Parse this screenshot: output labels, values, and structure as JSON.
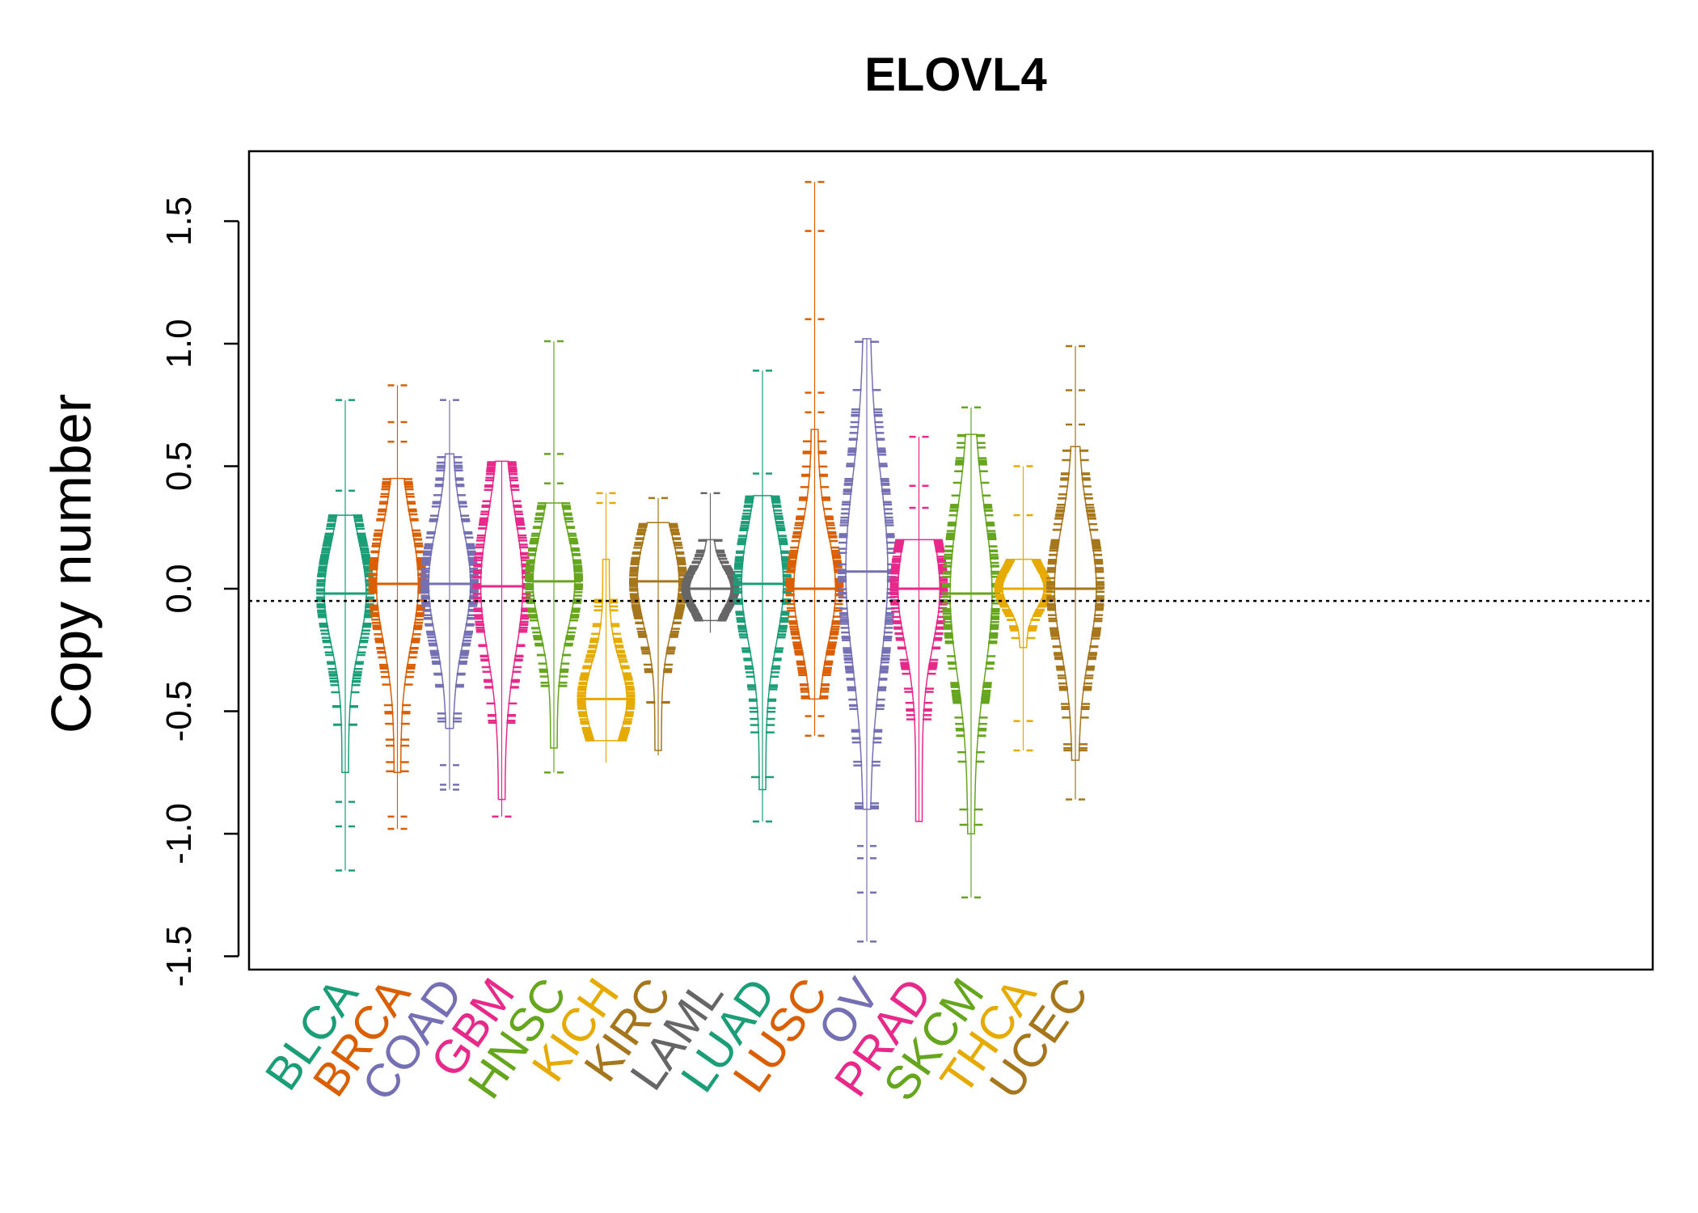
{
  "chart_data": {
    "type": "beanplot",
    "title": "ELOVL4",
    "xlabel": "",
    "ylabel": "Copy number",
    "ylim": [
      -1.5,
      1.7
    ],
    "yticks": [
      "-1.5",
      "-1.0",
      "-0.5",
      "0.0",
      "0.5",
      "1.0",
      "1.5"
    ],
    "reference_line": -0.05,
    "grid": false,
    "categories": [
      "BLCA",
      "BRCA",
      "COAD",
      "GBM",
      "HNSC",
      "KICH",
      "KIRC",
      "LAML",
      "LUAD",
      "LUSC",
      "OV",
      "PRAD",
      "SKCM",
      "THCA",
      "UCEC"
    ],
    "series": [
      {
        "category": "BLCA",
        "color": "#1B9E77",
        "median": -0.02,
        "min": -1.15,
        "max": 0.77,
        "q_low": -0.75,
        "q_high": 0.3,
        "outliers": [
          0.77,
          0.4,
          -0.87,
          -0.97,
          -1.15
        ]
      },
      {
        "category": "BRCA",
        "color": "#D95F02",
        "median": 0.02,
        "min": -0.98,
        "max": 0.83,
        "q_low": -0.75,
        "q_high": 0.45,
        "outliers": [
          0.83,
          0.68,
          0.6,
          -0.93,
          -0.98
        ]
      },
      {
        "category": "COAD",
        "color": "#7570B3",
        "median": 0.02,
        "min": -0.82,
        "max": 0.77,
        "q_low": -0.57,
        "q_high": 0.55,
        "outliers": [
          0.77,
          -0.72,
          -0.8,
          -0.82
        ]
      },
      {
        "category": "GBM",
        "color": "#E7298A",
        "median": 0.01,
        "min": -0.93,
        "max": 0.52,
        "q_low": -0.86,
        "q_high": 0.52,
        "outliers": [
          -0.93
        ]
      },
      {
        "category": "HNSC",
        "color": "#66A61E",
        "median": 0.03,
        "min": -0.75,
        "max": 1.01,
        "q_low": -0.65,
        "q_high": 0.35,
        "outliers": [
          1.01,
          0.55,
          0.43,
          -0.75
        ]
      },
      {
        "category": "KICH",
        "color": "#E6AB02",
        "median": -0.45,
        "min": -0.71,
        "max": 0.39,
        "q_low": -0.62,
        "q_high": 0.12,
        "outliers": [
          0.39,
          0.35
        ]
      },
      {
        "category": "KIRC",
        "color": "#A6761D",
        "median": 0.03,
        "min": -0.68,
        "max": 0.37,
        "q_low": -0.66,
        "q_high": 0.27,
        "outliers": [
          0.37
        ]
      },
      {
        "category": "LAML",
        "color": "#666666",
        "median": 0.0,
        "min": -0.18,
        "max": 0.39,
        "q_low": -0.13,
        "q_high": 0.2,
        "outliers": [
          0.39
        ]
      },
      {
        "category": "LUAD",
        "color": "#1B9E77",
        "median": 0.02,
        "min": -0.95,
        "max": 0.89,
        "q_low": -0.82,
        "q_high": 0.38,
        "outliers": [
          0.89,
          0.47,
          -0.95
        ]
      },
      {
        "category": "LUSC",
        "color": "#D95F02",
        "median": 0.0,
        "min": -0.6,
        "max": 1.66,
        "q_low": -0.45,
        "q_high": 0.65,
        "outliers": [
          1.66,
          1.46,
          1.1,
          0.8,
          0.72,
          -0.52,
          -0.6
        ]
      },
      {
        "category": "OV",
        "color": "#7570B3",
        "median": 0.07,
        "min": -1.44,
        "max": 1.02,
        "q_low": -0.9,
        "q_high": 1.02,
        "outliers": [
          -1.05,
          -1.1,
          -1.24,
          -1.44
        ]
      },
      {
        "category": "PRAD",
        "color": "#E7298A",
        "median": 0.0,
        "min": -0.95,
        "max": 0.62,
        "q_low": -0.95,
        "q_high": 0.2,
        "outliers": [
          0.62,
          0.42,
          0.33
        ]
      },
      {
        "category": "SKCM",
        "color": "#66A61E",
        "median": -0.02,
        "min": -1.26,
        "max": 0.74,
        "q_low": -1.0,
        "q_high": 0.63,
        "outliers": [
          0.74,
          -1.26
        ]
      },
      {
        "category": "THCA",
        "color": "#E6AB02",
        "median": 0.0,
        "min": -0.66,
        "max": 0.5,
        "q_low": -0.24,
        "q_high": 0.12,
        "outliers": [
          0.5,
          0.3,
          -0.54,
          -0.66
        ]
      },
      {
        "category": "UCEC",
        "color": "#A6761D",
        "median": 0.0,
        "min": -0.86,
        "max": 0.99,
        "q_low": -0.7,
        "q_high": 0.58,
        "outliers": [
          0.99,
          0.81,
          0.67,
          -0.86
        ]
      }
    ]
  }
}
